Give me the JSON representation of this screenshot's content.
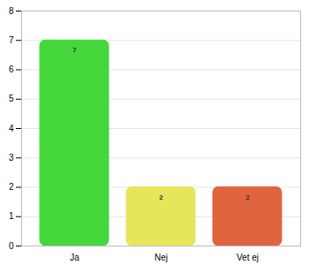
{
  "chart_data": {
    "type": "bar",
    "categories": [
      "Ja",
      "Nej",
      "Vet ej"
    ],
    "values": [
      7,
      2,
      2
    ],
    "colors": [
      "#44d63a",
      "#e6e65a",
      "#e0643e"
    ],
    "ylim": [
      0,
      8
    ],
    "yticks": [
      0,
      1,
      2,
      3,
      4,
      5,
      6,
      7,
      8
    ],
    "grid": true,
    "data_labels": true
  }
}
